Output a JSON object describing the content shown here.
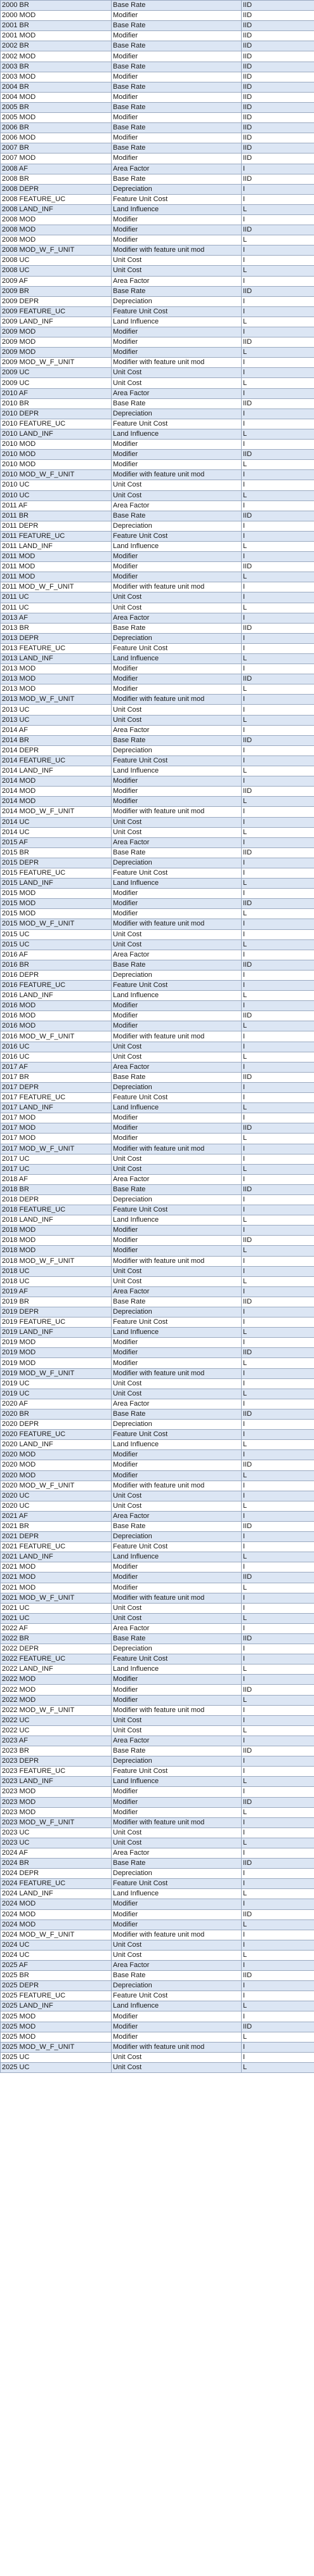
{
  "rows": [
    [
      "2000 BR",
      "Base Rate",
      "IID"
    ],
    [
      "2000 MOD",
      "Modifier",
      "IID"
    ],
    [
      "2001 BR",
      "Base Rate",
      "IID"
    ],
    [
      "2001 MOD",
      "Modifier",
      "IID"
    ],
    [
      "2002 BR",
      "Base Rate",
      "IID"
    ],
    [
      "2002 MOD",
      "Modifier",
      "IID"
    ],
    [
      "2003 BR",
      "Base Rate",
      "IID"
    ],
    [
      "2003 MOD",
      "Modifier",
      "IID"
    ],
    [
      "2004 BR",
      "Base Rate",
      "IID"
    ],
    [
      "2004 MOD",
      "Modifier",
      "IID"
    ],
    [
      "2005 BR",
      "Base Rate",
      "IID"
    ],
    [
      "2005 MOD",
      "Modifier",
      "IID"
    ],
    [
      "2006 BR",
      "Base Rate",
      "IID"
    ],
    [
      "2006 MOD",
      "Modifier",
      "IID"
    ],
    [
      "2007 BR",
      "Base Rate",
      "IID"
    ],
    [
      "2007 MOD",
      "Modifier",
      "IID"
    ],
    [
      "2008 AF",
      "Area Factor",
      "I"
    ],
    [
      "2008 BR",
      "Base Rate",
      "IID"
    ],
    [
      "2008 DEPR",
      "Depreciation",
      "I"
    ],
    [
      "2008 FEATURE_UC",
      "Feature Unit Cost",
      "I"
    ],
    [
      "2008 LAND_INF",
      "Land Influence",
      "L"
    ],
    [
      "2008 MOD",
      "Modifier",
      "I"
    ],
    [
      "2008 MOD",
      "Modifier",
      "IID"
    ],
    [
      "2008 MOD",
      "Modifier",
      "L"
    ],
    [
      "2008 MOD_W_F_UNIT",
      "Modifier with feature unit mod",
      "I"
    ],
    [
      "2008 UC",
      "Unit Cost",
      "I"
    ],
    [
      "2008 UC",
      "Unit Cost",
      "L"
    ],
    [
      "2009 AF",
      "Area Factor",
      "I"
    ],
    [
      "2009 BR",
      "Base Rate",
      "IID"
    ],
    [
      "2009 DEPR",
      "Depreciation",
      "I"
    ],
    [
      "2009 FEATURE_UC",
      "Feature Unit Cost",
      "I"
    ],
    [
      "2009 LAND_INF",
      "Land Influence",
      "L"
    ],
    [
      "2009 MOD",
      "Modifier",
      "I"
    ],
    [
      "2009 MOD",
      "Modifier",
      "IID"
    ],
    [
      "2009 MOD",
      "Modifier",
      "L"
    ],
    [
      "2009 MOD_W_F_UNIT",
      "Modifier with feature unit mod",
      "I"
    ],
    [
      "2009 UC",
      "Unit Cost",
      "I"
    ],
    [
      "2009 UC",
      "Unit Cost",
      "L"
    ],
    [
      "2010 AF",
      "Area Factor",
      "I"
    ],
    [
      "2010 BR",
      "Base Rate",
      "IID"
    ],
    [
      "2010 DEPR",
      "Depreciation",
      "I"
    ],
    [
      "2010 FEATURE_UC",
      "Feature Unit Cost",
      "I"
    ],
    [
      "2010 LAND_INF",
      "Land Influence",
      "L"
    ],
    [
      "2010 MOD",
      "Modifier",
      "I"
    ],
    [
      "2010 MOD",
      "Modifier",
      "IID"
    ],
    [
      "2010 MOD",
      "Modifier",
      "L"
    ],
    [
      "2010 MOD_W_F_UNIT",
      "Modifier with feature unit mod",
      "I"
    ],
    [
      "2010 UC",
      "Unit Cost",
      "I"
    ],
    [
      "2010 UC",
      "Unit Cost",
      "L"
    ],
    [
      "2011 AF",
      "Area Factor",
      "I"
    ],
    [
      "2011 BR",
      "Base Rate",
      "IID"
    ],
    [
      "2011 DEPR",
      "Depreciation",
      "I"
    ],
    [
      "2011 FEATURE_UC",
      "Feature Unit Cost",
      "I"
    ],
    [
      "2011 LAND_INF",
      "Land Influence",
      "L"
    ],
    [
      "2011 MOD",
      "Modifier",
      "I"
    ],
    [
      "2011 MOD",
      "Modifier",
      "IID"
    ],
    [
      "2011 MOD",
      "Modifier",
      "L"
    ],
    [
      "2011 MOD_W_F_UNIT",
      "Modifier with feature unit mod",
      "I"
    ],
    [
      "2011 UC",
      "Unit Cost",
      "I"
    ],
    [
      "2011 UC",
      "Unit Cost",
      "L"
    ],
    [
      "2013 AF",
      "Area Factor",
      "I"
    ],
    [
      "2013 BR",
      "Base Rate",
      "IID"
    ],
    [
      "2013 DEPR",
      "Depreciation",
      "I"
    ],
    [
      "2013 FEATURE_UC",
      "Feature Unit Cost",
      "I"
    ],
    [
      "2013 LAND_INF",
      "Land Influence",
      "L"
    ],
    [
      "2013 MOD",
      "Modifier",
      "I"
    ],
    [
      "2013 MOD",
      "Modifier",
      "IID"
    ],
    [
      "2013 MOD",
      "Modifier",
      "L"
    ],
    [
      "2013 MOD_W_F_UNIT",
      "Modifier with feature unit mod",
      "I"
    ],
    [
      "2013 UC",
      "Unit Cost",
      "I"
    ],
    [
      "2013 UC",
      "Unit Cost",
      "L"
    ],
    [
      "2014 AF",
      "Area Factor",
      "I"
    ],
    [
      "2014 BR",
      "Base Rate",
      "IID"
    ],
    [
      "2014 DEPR",
      "Depreciation",
      "I"
    ],
    [
      "2014 FEATURE_UC",
      "Feature Unit Cost",
      "I"
    ],
    [
      "2014 LAND_INF",
      "Land Influence",
      "L"
    ],
    [
      "2014 MOD",
      "Modifier",
      "I"
    ],
    [
      "2014 MOD",
      "Modifier",
      "IID"
    ],
    [
      "2014 MOD",
      "Modifier",
      "L"
    ],
    [
      "2014 MOD_W_F_UNIT",
      "Modifier with feature unit mod",
      "I"
    ],
    [
      "2014 UC",
      "Unit Cost",
      "I"
    ],
    [
      "2014 UC",
      "Unit Cost",
      "L"
    ],
    [
      "2015 AF",
      "Area Factor",
      "I"
    ],
    [
      "2015 BR",
      "Base Rate",
      "IID"
    ],
    [
      "2015 DEPR",
      "Depreciation",
      "I"
    ],
    [
      "2015 FEATURE_UC",
      "Feature Unit Cost",
      "I"
    ],
    [
      "2015 LAND_INF",
      "Land Influence",
      "L"
    ],
    [
      "2015 MOD",
      "Modifier",
      "I"
    ],
    [
      "2015 MOD",
      "Modifier",
      "IID"
    ],
    [
      "2015 MOD",
      "Modifier",
      "L"
    ],
    [
      "2015 MOD_W_F_UNIT",
      "Modifier with feature unit mod",
      "I"
    ],
    [
      "2015 UC",
      "Unit Cost",
      "I"
    ],
    [
      "2015 UC",
      "Unit Cost",
      "L"
    ],
    [
      "2016 AF",
      "Area Factor",
      "I"
    ],
    [
      "2016 BR",
      "Base Rate",
      "IID"
    ],
    [
      "2016 DEPR",
      "Depreciation",
      "I"
    ],
    [
      "2016 FEATURE_UC",
      "Feature Unit Cost",
      "I"
    ],
    [
      "2016 LAND_INF",
      "Land Influence",
      "L"
    ],
    [
      "2016 MOD",
      "Modifier",
      "I"
    ],
    [
      "2016 MOD",
      "Modifier",
      "IID"
    ],
    [
      "2016 MOD",
      "Modifier",
      "L"
    ],
    [
      "2016 MOD_W_F_UNIT",
      "Modifier with feature unit mod",
      "I"
    ],
    [
      "2016 UC",
      "Unit Cost",
      "I"
    ],
    [
      "2016 UC",
      "Unit Cost",
      "L"
    ],
    [
      "2017 AF",
      "Area Factor",
      "I"
    ],
    [
      "2017 BR",
      "Base Rate",
      "IID"
    ],
    [
      "2017 DEPR",
      "Depreciation",
      "I"
    ],
    [
      "2017 FEATURE_UC",
      "Feature Unit Cost",
      "I"
    ],
    [
      "2017 LAND_INF",
      "Land Influence",
      "L"
    ],
    [
      "2017 MOD",
      "Modifier",
      "I"
    ],
    [
      "2017 MOD",
      "Modifier",
      "IID"
    ],
    [
      "2017 MOD",
      "Modifier",
      "L"
    ],
    [
      "2017 MOD_W_F_UNIT",
      "Modifier with feature unit mod",
      "I"
    ],
    [
      "2017 UC",
      "Unit Cost",
      "I"
    ],
    [
      "2017 UC",
      "Unit Cost",
      "L"
    ],
    [
      "2018 AF",
      "Area Factor",
      "I"
    ],
    [
      "2018 BR",
      "Base Rate",
      "IID"
    ],
    [
      "2018 DEPR",
      "Depreciation",
      "I"
    ],
    [
      "2018 FEATURE_UC",
      "Feature Unit Cost",
      "I"
    ],
    [
      "2018 LAND_INF",
      "Land Influence",
      "L"
    ],
    [
      "2018 MOD",
      "Modifier",
      "I"
    ],
    [
      "2018 MOD",
      "Modifier",
      "IID"
    ],
    [
      "2018 MOD",
      "Modifier",
      "L"
    ],
    [
      "2018 MOD_W_F_UNIT",
      "Modifier with feature unit mod",
      "I"
    ],
    [
      "2018 UC",
      "Unit Cost",
      "I"
    ],
    [
      "2018 UC",
      "Unit Cost",
      "L"
    ],
    [
      "2019 AF",
      "Area Factor",
      "I"
    ],
    [
      "2019 BR",
      "Base Rate",
      "IID"
    ],
    [
      "2019 DEPR",
      "Depreciation",
      "I"
    ],
    [
      "2019 FEATURE_UC",
      "Feature Unit Cost",
      "I"
    ],
    [
      "2019 LAND_INF",
      "Land Influence",
      "L"
    ],
    [
      "2019 MOD",
      "Modifier",
      "I"
    ],
    [
      "2019 MOD",
      "Modifier",
      "IID"
    ],
    [
      "2019 MOD",
      "Modifier",
      "L"
    ],
    [
      "2019 MOD_W_F_UNIT",
      "Modifier with feature unit mod",
      "I"
    ],
    [
      "2019 UC",
      "Unit Cost",
      "I"
    ],
    [
      "2019 UC",
      "Unit Cost",
      "L"
    ],
    [
      "2020 AF",
      "Area Factor",
      "I"
    ],
    [
      "2020 BR",
      "Base Rate",
      "IID"
    ],
    [
      "2020 DEPR",
      "Depreciation",
      "I"
    ],
    [
      "2020 FEATURE_UC",
      "Feature Unit Cost",
      "I"
    ],
    [
      "2020 LAND_INF",
      "Land Influence",
      "L"
    ],
    [
      "2020 MOD",
      "Modifier",
      "I"
    ],
    [
      "2020 MOD",
      "Modifier",
      "IID"
    ],
    [
      "2020 MOD",
      "Modifier",
      "L"
    ],
    [
      "2020 MOD_W_F_UNIT",
      "Modifier with feature unit mod",
      "I"
    ],
    [
      "2020 UC",
      "Unit Cost",
      "I"
    ],
    [
      "2020 UC",
      "Unit Cost",
      "L"
    ],
    [
      "2021 AF",
      "Area Factor",
      "I"
    ],
    [
      "2021 BR",
      "Base Rate",
      "IID"
    ],
    [
      "2021 DEPR",
      "Depreciation",
      "I"
    ],
    [
      "2021 FEATURE_UC",
      "Feature Unit Cost",
      "I"
    ],
    [
      "2021 LAND_INF",
      "Land Influence",
      "L"
    ],
    [
      "2021 MOD",
      "Modifier",
      "I"
    ],
    [
      "2021 MOD",
      "Modifier",
      "IID"
    ],
    [
      "2021 MOD",
      "Modifier",
      "L"
    ],
    [
      "2021 MOD_W_F_UNIT",
      "Modifier with feature unit mod",
      "I"
    ],
    [
      "2021 UC",
      "Unit Cost",
      "I"
    ],
    [
      "2021 UC",
      "Unit Cost",
      "L"
    ],
    [
      "2022 AF",
      "Area Factor",
      "I"
    ],
    [
      "2022 BR",
      "Base Rate",
      "IID"
    ],
    [
      "2022 DEPR",
      "Depreciation",
      "I"
    ],
    [
      "2022 FEATURE_UC",
      "Feature Unit Cost",
      "I"
    ],
    [
      "2022 LAND_INF",
      "Land Influence",
      "L"
    ],
    [
      "2022 MOD",
      "Modifier",
      "I"
    ],
    [
      "2022 MOD",
      "Modifier",
      "IID"
    ],
    [
      "2022 MOD",
      "Modifier",
      "L"
    ],
    [
      "2022 MOD_W_F_UNIT",
      "Modifier with feature unit mod",
      "I"
    ],
    [
      "2022 UC",
      "Unit Cost",
      "I"
    ],
    [
      "2022 UC",
      "Unit Cost",
      "L"
    ],
    [
      "2023 AF",
      "Area Factor",
      "I"
    ],
    [
      "2023 BR",
      "Base Rate",
      "IID"
    ],
    [
      "2023 DEPR",
      "Depreciation",
      "I"
    ],
    [
      "2023 FEATURE_UC",
      "Feature Unit Cost",
      "I"
    ],
    [
      "2023 LAND_INF",
      "Land Influence",
      "L"
    ],
    [
      "2023 MOD",
      "Modifier",
      "I"
    ],
    [
      "2023 MOD",
      "Modifier",
      "IID"
    ],
    [
      "2023 MOD",
      "Modifier",
      "L"
    ],
    [
      "2023 MOD_W_F_UNIT",
      "Modifier with feature unit mod",
      "I"
    ],
    [
      "2023 UC",
      "Unit Cost",
      "I"
    ],
    [
      "2023 UC",
      "Unit Cost",
      "L"
    ],
    [
      "2024 AF",
      "Area Factor",
      "I"
    ],
    [
      "2024 BR",
      "Base Rate",
      "IID"
    ],
    [
      "2024 DEPR",
      "Depreciation",
      "I"
    ],
    [
      "2024 FEATURE_UC",
      "Feature Unit Cost",
      "I"
    ],
    [
      "2024 LAND_INF",
      "Land Influence",
      "L"
    ],
    [
      "2024 MOD",
      "Modifier",
      "I"
    ],
    [
      "2024 MOD",
      "Modifier",
      "IID"
    ],
    [
      "2024 MOD",
      "Modifier",
      "L"
    ],
    [
      "2024 MOD_W_F_UNIT",
      "Modifier with feature unit mod",
      "I"
    ],
    [
      "2024 UC",
      "Unit Cost",
      "I"
    ],
    [
      "2024 UC",
      "Unit Cost",
      "L"
    ],
    [
      "2025 AF",
      "Area Factor",
      "I"
    ],
    [
      "2025 BR",
      "Base Rate",
      "IID"
    ],
    [
      "2025 DEPR",
      "Depreciation",
      "I"
    ],
    [
      "2025 FEATURE_UC",
      "Feature Unit Cost",
      "I"
    ],
    [
      "2025 LAND_INF",
      "Land Influence",
      "L"
    ],
    [
      "2025 MOD",
      "Modifier",
      "I"
    ],
    [
      "2025 MOD",
      "Modifier",
      "IID"
    ],
    [
      "2025 MOD",
      "Modifier",
      "L"
    ],
    [
      "2025 MOD_W_F_UNIT",
      "Modifier with feature unit mod",
      "I"
    ],
    [
      "2025 UC",
      "Unit Cost",
      "I"
    ],
    [
      "2025 UC",
      "Unit Cost",
      "L"
    ]
  ]
}
